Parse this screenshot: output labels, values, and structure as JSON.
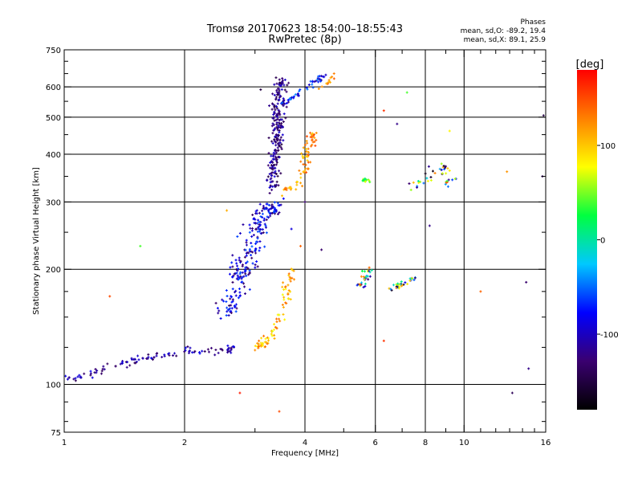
{
  "chart_data": {
    "type": "scatter",
    "title": "Tromsø 20170623 18:54:00–18:55:43",
    "subtitle": "RwPretec (8p)",
    "xlabel": "Frequency [MHz]",
    "ylabel": "Stationary phase Virtual Height [km]",
    "x_scale": "log",
    "y_scale": "log",
    "xlim": [
      1,
      16
    ],
    "ylim": [
      75,
      750
    ],
    "x_ticks": [
      1,
      2,
      4,
      6,
      8,
      10,
      16
    ],
    "x_minor_ticks": [
      3,
      5,
      7,
      9,
      11,
      12,
      13,
      14,
      15
    ],
    "y_ticks": [
      75,
      100,
      200,
      300,
      400,
      500,
      600,
      750
    ],
    "y_minor_ticks": [
      80,
      90,
      125,
      150,
      175,
      250,
      350,
      450,
      550,
      650,
      700
    ],
    "grid_x": [
      2,
      4,
      6,
      8,
      10
    ],
    "grid_y": [
      100,
      200,
      300,
      400,
      500,
      600
    ],
    "legend": {
      "heading": "Phases",
      "line1": "mean, sd,O: -89.2, 19.4",
      "line2": "mean, sd,X: 89.1, 25.9",
      "position": "top-right"
    },
    "colorbar": {
      "label": "[deg]",
      "range": [
        -180,
        180
      ],
      "ticks": [
        100,
        0,
        -100
      ],
      "colors": [
        "#000000",
        "#3a0070",
        "#0000ff",
        "#00c8ff",
        "#00ff40",
        "#ffff00",
        "#ff8000",
        "#ff0000"
      ]
    },
    "clusters": [
      {
        "name": "trace-low",
        "path": [
          [
            1.0,
            104
          ],
          [
            1.1,
            104
          ],
          [
            1.25,
            109
          ],
          [
            1.45,
            115
          ],
          [
            1.65,
            118
          ],
          [
            1.85,
            120
          ],
          [
            2.0,
            122
          ],
          [
            2.25,
            122
          ],
          [
            2.5,
            123
          ],
          [
            2.7,
            125
          ]
        ],
        "spread": 0.03,
        "count": 110,
        "phase": [
          -140,
          -80
        ]
      },
      {
        "name": "trace-mid-cloud",
        "path": [
          [
            2.5,
            150
          ],
          [
            2.65,
            170
          ],
          [
            2.75,
            190
          ],
          [
            2.85,
            210
          ],
          [
            2.95,
            235
          ],
          [
            3.05,
            265
          ],
          [
            3.2,
            285
          ],
          [
            3.35,
            295
          ]
        ],
        "spread": 0.07,
        "count": 240,
        "phase": [
          -140,
          -55
        ]
      },
      {
        "name": "trace-upper-column",
        "path": [
          [
            3.3,
            320
          ],
          [
            3.35,
            380
          ],
          [
            3.4,
            440
          ],
          [
            3.42,
            500
          ],
          [
            3.45,
            560
          ],
          [
            3.5,
            630
          ]
        ],
        "spread": 0.035,
        "count": 240,
        "phase": [
          -150,
          -90
        ]
      },
      {
        "name": "trace-upper-branch",
        "path": [
          [
            3.5,
            540
          ],
          [
            3.7,
            560
          ],
          [
            3.95,
            590
          ],
          [
            4.2,
            620
          ],
          [
            4.5,
            640
          ]
        ],
        "spread": 0.02,
        "count": 45,
        "phase": [
          -120,
          -40
        ]
      },
      {
        "name": "x-trace-low",
        "path": [
          [
            3.05,
            125
          ],
          [
            3.2,
            130
          ],
          [
            3.4,
            140
          ],
          [
            3.55,
            165
          ],
          [
            3.65,
            185
          ],
          [
            3.75,
            200
          ]
        ],
        "spread": 0.03,
        "count": 80,
        "phase": [
          70,
          140
        ]
      },
      {
        "name": "x-trace-upper",
        "path": [
          [
            3.6,
            320
          ],
          [
            3.8,
            330
          ],
          [
            3.95,
            350
          ],
          [
            4.0,
            380
          ],
          [
            4.1,
            420
          ],
          [
            4.2,
            460
          ]
        ],
        "spread": 0.03,
        "count": 70,
        "phase": [
          90,
          150
        ]
      },
      {
        "name": "x-trace-top",
        "path": [
          [
            4.3,
            590
          ],
          [
            4.6,
            620
          ],
          [
            4.7,
            640
          ]
        ],
        "spread": 0.015,
        "count": 12,
        "phase": [
          100,
          150
        ]
      },
      {
        "name": "patch-5.5MHz",
        "path": [
          [
            5.5,
            180
          ],
          [
            5.7,
            190
          ],
          [
            5.8,
            200
          ]
        ],
        "spread": 0.03,
        "count": 30,
        "phase": [
          -160,
          140
        ]
      },
      {
        "name": "patch-6.5MHz",
        "path": [
          [
            6.6,
            180
          ],
          [
            7.0,
            182
          ],
          [
            7.5,
            190
          ]
        ],
        "spread": 0.02,
        "count": 30,
        "phase": [
          -170,
          150
        ]
      },
      {
        "name": "patch-8-9MHz",
        "path": [
          [
            7.5,
            330
          ],
          [
            8.2,
            350
          ],
          [
            8.9,
            370
          ],
          [
            9.2,
            330
          ]
        ],
        "spread": 0.04,
        "count": 40,
        "phase": [
          -170,
          150
        ]
      },
      {
        "name": "patch-5.8MHz-upper",
        "path": [
          [
            5.5,
            345
          ],
          [
            5.8,
            340
          ]
        ],
        "spread": 0.015,
        "count": 12,
        "phase": [
          0,
          80
        ]
      }
    ],
    "scatter_points": [
      {
        "x": 1.3,
        "y": 170,
        "phase": 150
      },
      {
        "x": 1.55,
        "y": 230,
        "phase": 40
      },
      {
        "x": 2.55,
        "y": 285,
        "phase": 110
      },
      {
        "x": 2.75,
        "y": 95,
        "phase": 170
      },
      {
        "x": 3.1,
        "y": 590,
        "phase": -150
      },
      {
        "x": 3.45,
        "y": 85,
        "phase": 150
      },
      {
        "x": 3.7,
        "y": 255,
        "phase": -90
      },
      {
        "x": 4.4,
        "y": 225,
        "phase": -130
      },
      {
        "x": 6.3,
        "y": 130,
        "phase": 160
      },
      {
        "x": 6.3,
        "y": 520,
        "phase": 160
      },
      {
        "x": 6.8,
        "y": 480,
        "phase": -120
      },
      {
        "x": 7.2,
        "y": 580,
        "phase": 40
      },
      {
        "x": 8.2,
        "y": 260,
        "phase": -120
      },
      {
        "x": 9.2,
        "y": 460,
        "phase": 80
      },
      {
        "x": 11.0,
        "y": 175,
        "phase": 140
      },
      {
        "x": 12.8,
        "y": 360,
        "phase": 120
      },
      {
        "x": 13.2,
        "y": 95,
        "phase": -140
      },
      {
        "x": 14.5,
        "y": 110,
        "phase": -120
      },
      {
        "x": 14.3,
        "y": 185,
        "phase": -130
      },
      {
        "x": 15.8,
        "y": 505,
        "phase": -150
      },
      {
        "x": 15.7,
        "y": 350,
        "phase": -140
      },
      {
        "x": 9.5,
        "y": 345,
        "phase": 60
      },
      {
        "x": 4.0,
        "y": 300,
        "phase": -130
      },
      {
        "x": 3.9,
        "y": 230,
        "phase": 140
      }
    ]
  }
}
